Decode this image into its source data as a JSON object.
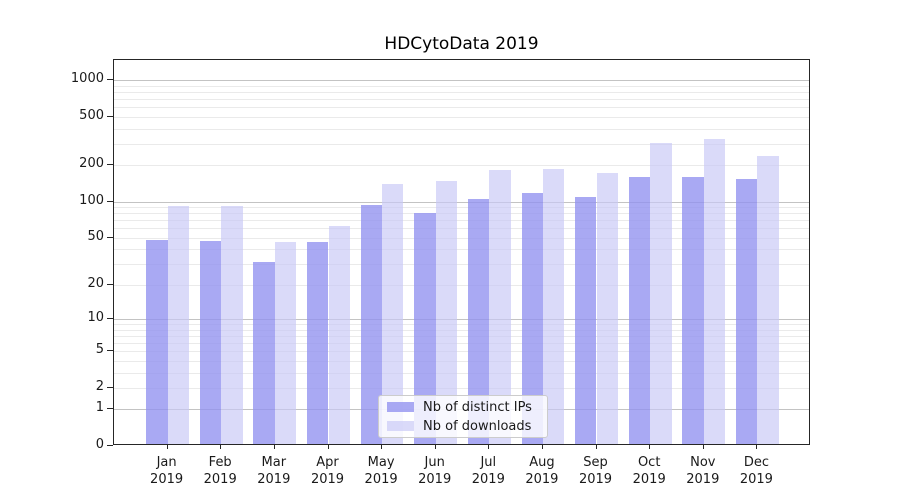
{
  "chart_data": {
    "type": "bar",
    "title": "HDCytoData 2019",
    "year_label": "2019",
    "categories": [
      "Jan",
      "Feb",
      "Mar",
      "Apr",
      "May",
      "Jun",
      "Jul",
      "Aug",
      "Sep",
      "Oct",
      "Nov",
      "Dec"
    ],
    "series": [
      {
        "name": "Nb of distinct IPs",
        "hex": "#a4a4f2",
        "fill": "rgba(145,145,240,0.78)",
        "values": [
          46,
          45,
          30,
          44,
          90,
          77,
          102,
          113,
          106,
          155,
          153,
          148
        ]
      },
      {
        "name": "Nb of downloads",
        "hex": "#d9d9f8",
        "fill": "rgba(200,200,246,0.67)",
        "values": [
          88,
          88,
          44,
          60,
          134,
          143,
          175,
          178,
          167,
          291,
          316,
          228
        ]
      }
    ],
    "y_axis": {
      "scale": "log1p",
      "tick_values": [
        0,
        1,
        2,
        5,
        10,
        20,
        50,
        100,
        200,
        500,
        1000
      ],
      "range": [
        0,
        1460
      ]
    },
    "grid": {
      "major_values": [
        1,
        10,
        100,
        1000
      ],
      "minor_values": [
        2,
        3,
        4,
        5,
        6,
        7,
        8,
        9,
        20,
        30,
        40,
        50,
        60,
        70,
        80,
        90,
        200,
        300,
        400,
        500,
        600,
        700,
        800,
        900
      ]
    },
    "legend": {
      "position": "bottom-center",
      "entries": [
        "Nb of distinct IPs",
        "Nb of downloads"
      ]
    }
  },
  "colors": {
    "major_grid": "#c3c3c3",
    "minor_grid": "#eaeaea",
    "frame": "#262626",
    "text": "#1a1a1a",
    "legend_border": "#cccccc",
    "legend_bg": "rgba(255,255,255,0.8)"
  }
}
